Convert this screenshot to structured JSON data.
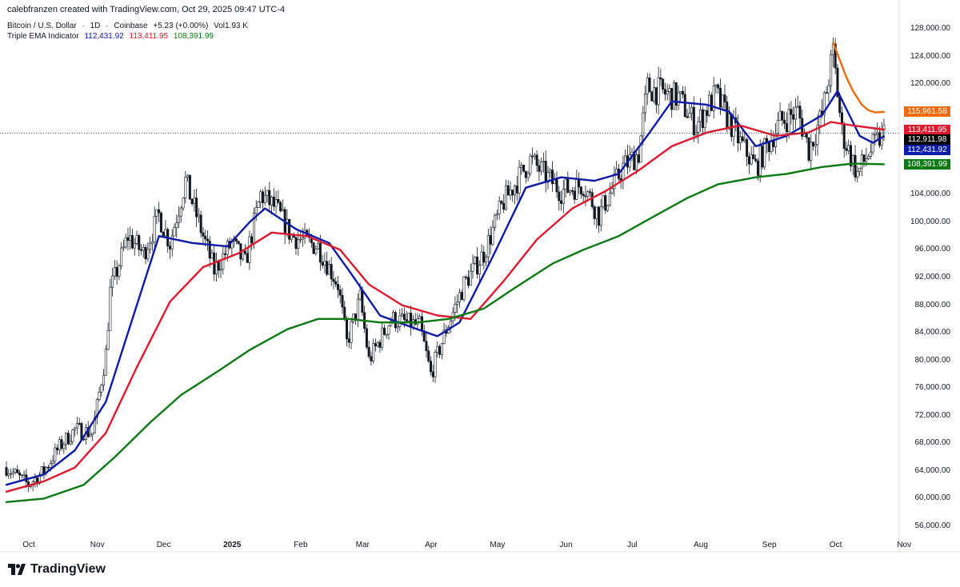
{
  "header": {
    "text": "calebfranzen created with TradingView.com, Oct 29, 2025 09:47 UTC-4"
  },
  "symbol": {
    "name": "Bitcoin / U.S. Dollar",
    "interval": "1D",
    "exchange": "Coinbase",
    "change": "+5.23 (+0.00%)",
    "volume": "Vol1.93 K"
  },
  "indicator": {
    "name": "Triple EMA Indicator",
    "v1": "112,431.92",
    "v2": "113,411.95",
    "v3": "108,391.99"
  },
  "logo": {
    "name": "TradingView",
    "icon": "tradingview-logo-icon"
  },
  "colors": {
    "ema_fast": "#0d1bab",
    "ema_mid": "#e0192f",
    "ema_slow": "#0b7a12",
    "ema_extra": "#f06b0e",
    "candles": "#131722",
    "last_price_badge": "#000000"
  },
  "chart_data": {
    "type": "line",
    "title": "",
    "xlabel": "",
    "ylabel": "",
    "ylim": [
      54000,
      130000
    ],
    "grid": false,
    "y_ticks": [
      "56,000.00",
      "60,000.00",
      "64,000.00",
      "68,000.00",
      "72,000.00",
      "76,000.00",
      "80,000.00",
      "84,000.00",
      "88,000.00",
      "92,000.00",
      "96,000.00",
      "100,000.00",
      "104,000.00",
      "108,000.00",
      "112,000.00",
      "116,000.00",
      "120,000.00",
      "124,000.00",
      "128,000.00"
    ],
    "x_ticks": [
      {
        "label": "Oct",
        "x": "2024-10-01"
      },
      {
        "label": "Nov",
        "x": "2024-11-01"
      },
      {
        "label": "Dec",
        "x": "2024-12-01"
      },
      {
        "label": "2025",
        "x": "2025-01-01",
        "bold": true
      },
      {
        "label": "Feb",
        "x": "2025-02-01"
      },
      {
        "label": "Mar",
        "x": "2025-03-01"
      },
      {
        "label": "Apr",
        "x": "2025-04-01"
      },
      {
        "label": "May",
        "x": "2025-05-01"
      },
      {
        "label": "Jun",
        "x": "2025-06-01"
      },
      {
        "label": "Jul",
        "x": "2025-07-01"
      },
      {
        "label": "Aug",
        "x": "2025-08-01"
      },
      {
        "label": "Sep",
        "x": "2025-09-01"
      },
      {
        "label": "Oct",
        "x": "2025-10-01"
      },
      {
        "label": "Nov",
        "x": "2025-11-01"
      }
    ],
    "price": {
      "dates": [
        "2024-09-27",
        "2024-10-07",
        "2024-10-14",
        "2024-10-21",
        "2024-10-28",
        "2024-11-05",
        "2024-11-11",
        "2024-11-13",
        "2024-11-21",
        "2024-11-28",
        "2024-12-05",
        "2024-12-10",
        "2024-12-17",
        "2024-12-30",
        "2025-01-07",
        "2025-01-13",
        "2025-01-20",
        "2025-01-27",
        "2025-02-03",
        "2025-02-15",
        "2025-02-24",
        "2025-02-28",
        "2025-03-06",
        "2025-03-10",
        "2025-03-20",
        "2025-04-02",
        "2025-04-07",
        "2025-04-14",
        "2025-04-22",
        "2025-05-01",
        "2025-05-10",
        "2025-05-22",
        "2025-06-05",
        "2025-06-15",
        "2025-06-22",
        "2025-07-03",
        "2025-07-10",
        "2025-07-14",
        "2025-07-28",
        "2025-08-05",
        "2025-08-14",
        "2025-08-25",
        "2025-09-01",
        "2025-09-12",
        "2025-09-20",
        "2025-09-25",
        "2025-10-01",
        "2025-10-06",
        "2025-10-10",
        "2025-10-17",
        "2025-10-22",
        "2025-10-29"
      ],
      "close": [
        64500,
        62000,
        64000,
        67500,
        70000,
        69500,
        81000,
        90000,
        98000,
        95500,
        101000,
        97000,
        106000,
        93000,
        97000,
        94000,
        104000,
        102000,
        98000,
        96500,
        91000,
        82500,
        89000,
        80000,
        86000,
        85000,
        78000,
        84500,
        91000,
        95500,
        103000,
        109000,
        104500,
        105500,
        101000,
        108000,
        110000,
        119500,
        118000,
        114000,
        118500,
        111500,
        108000,
        114500,
        116000,
        110500,
        115500,
        124500,
        113000,
        107000,
        110000,
        112900
      ]
    },
    "series": [
      {
        "name": "112,431.92",
        "dates": [
          "2024-09-27",
          "2024-10-14",
          "2024-10-28",
          "2024-11-11",
          "2024-11-25",
          "2024-12-05",
          "2024-12-20",
          "2025-01-05",
          "2025-01-15",
          "2025-01-22",
          "2025-02-05",
          "2025-02-20",
          "2025-03-01",
          "2025-03-15",
          "2025-04-01",
          "2025-04-10",
          "2025-04-20",
          "2025-05-05",
          "2025-05-20",
          "2025-06-05",
          "2025-06-20",
          "2025-07-01",
          "2025-07-15",
          "2025-07-25",
          "2025-08-10",
          "2025-08-20",
          "2025-09-01",
          "2025-09-15",
          "2025-10-01",
          "2025-10-08",
          "2025-10-18",
          "2025-10-24",
          "2025-10-29"
        ],
        "values": [
          62000,
          63500,
          67000,
          74000,
          88000,
          98000,
          97000,
          96500,
          100000,
          102000,
          99000,
          97000,
          93000,
          86500,
          84500,
          83500,
          85500,
          95000,
          105000,
          106500,
          106000,
          107000,
          113000,
          117500,
          117000,
          116000,
          111000,
          112500,
          115500,
          119000,
          112500,
          111500,
          112432
        ]
      },
      {
        "name": "113,411.95",
        "dates": [
          "2024-09-27",
          "2024-10-14",
          "2024-10-28",
          "2024-11-11",
          "2024-11-25",
          "2024-12-10",
          "2024-12-25",
          "2025-01-10",
          "2025-01-25",
          "2025-02-10",
          "2025-02-25",
          "2025-03-10",
          "2025-03-25",
          "2025-04-10",
          "2025-04-25",
          "2025-05-10",
          "2025-05-25",
          "2025-06-10",
          "2025-06-25",
          "2025-07-10",
          "2025-07-25",
          "2025-08-10",
          "2025-08-25",
          "2025-09-10",
          "2025-09-25",
          "2025-10-05",
          "2025-10-15",
          "2025-10-29"
        ],
        "values": [
          61000,
          62500,
          64500,
          69500,
          79000,
          88500,
          93500,
          95500,
          98500,
          98000,
          96000,
          91000,
          88000,
          86500,
          86000,
          91500,
          97500,
          102000,
          104500,
          107500,
          111000,
          113000,
          114000,
          112500,
          113000,
          114500,
          114000,
          113412
        ]
      },
      {
        "name": "108,391.99",
        "dates": [
          "2024-09-27",
          "2024-10-14",
          "2024-11-01",
          "2024-11-15",
          "2024-12-01",
          "2024-12-15",
          "2025-01-01",
          "2025-01-15",
          "2025-02-01",
          "2025-02-15",
          "2025-03-01",
          "2025-03-15",
          "2025-04-01",
          "2025-04-15",
          "2025-05-01",
          "2025-05-15",
          "2025-06-01",
          "2025-06-15",
          "2025-07-01",
          "2025-07-15",
          "2025-08-01",
          "2025-08-15",
          "2025-09-01",
          "2025-09-15",
          "2025-10-01",
          "2025-10-15",
          "2025-10-29"
        ],
        "values": [
          59500,
          60000,
          62000,
          66000,
          71000,
          75000,
          78500,
          81500,
          84500,
          86000,
          86000,
          85500,
          85500,
          86000,
          87500,
          90500,
          94000,
          96000,
          98000,
          100500,
          103500,
          105500,
          106500,
          107000,
          108000,
          108500,
          108392
        ]
      },
      {
        "name": "115,961.58",
        "dates": [
          "2025-10-06",
          "2025-10-09",
          "2025-10-12",
          "2025-10-15",
          "2025-10-19",
          "2025-10-22",
          "2025-10-25",
          "2025-10-29"
        ],
        "values": [
          126000,
          123500,
          121000,
          119000,
          117000,
          116200,
          115900,
          115962
        ]
      }
    ],
    "badges": [
      {
        "label": "115,961.58",
        "value": 115961.58,
        "color": "#f06b0e"
      },
      {
        "label": "113,411.95",
        "value": 113411.95,
        "color": "#e0192f"
      },
      {
        "label": "112,911.98",
        "value": 112911.98,
        "color": "#000000"
      },
      {
        "label": "112,431.92",
        "value": 112431.92,
        "color": "#0d1bab"
      },
      {
        "label": "108,391.99",
        "value": 108391.99,
        "color": "#0b7a12"
      }
    ],
    "last_price": 112911.98
  }
}
